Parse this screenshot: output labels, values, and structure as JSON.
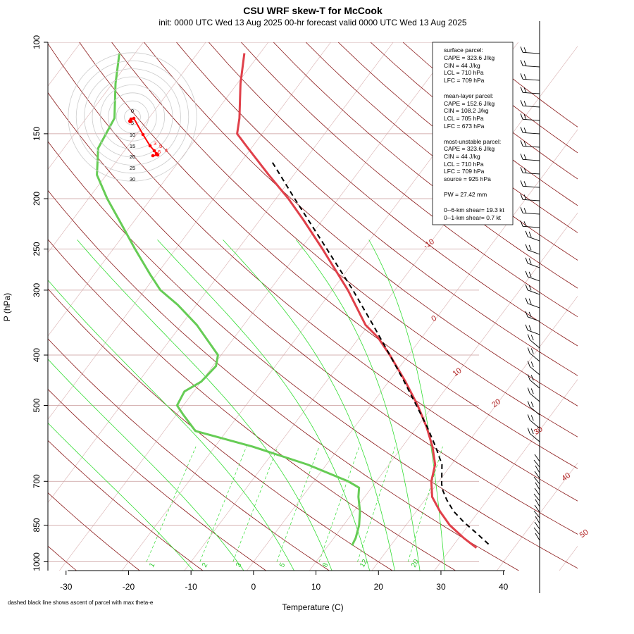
{
  "chart_data": {
    "type": "line",
    "title": "CSU WRF skew-T for McCook",
    "subtitle": "init: 0000 UTC Wed 13 Aug 2025    00-hr forecast valid 0000 UTC Wed 13 Aug 2025",
    "xlabel": "Temperature (C)",
    "ylabel": "P (hPa)",
    "xlim": [
      -33,
      52
    ],
    "ylim": [
      1000,
      100
    ],
    "y_scale": "log",
    "x_ticks": [
      "-30",
      "-20",
      "-10",
      "0",
      "10",
      "20",
      "30",
      "40"
    ],
    "y_ticks": [
      "100",
      "150",
      "200",
      "250",
      "300",
      "400",
      "500",
      "700",
      "850",
      "1000"
    ],
    "isotherm_labels": [
      "-10",
      "0",
      "10",
      "20",
      "30",
      "40",
      "50"
    ],
    "mixing_ratio_labels": [
      "1",
      "2",
      "3",
      "5",
      "8",
      "12",
      "20"
    ],
    "series": [
      {
        "name": "",
        "color": "#e0404a",
        "points": [
          {
            "p": 940,
            "t": 34.0
          },
          {
            "p": 900,
            "t": 30.8
          },
          {
            "p": 850,
            "t": 27.0
          },
          {
            "p": 800,
            "t": 23.8
          },
          {
            "p": 750,
            "t": 20.8
          },
          {
            "p": 700,
            "t": 18.8
          },
          {
            "p": 650,
            "t": 17.4
          },
          {
            "p": 600,
            "t": 14.8
          },
          {
            "p": 550,
            "t": 11.5
          },
          {
            "p": 500,
            "t": 7.5
          },
          {
            "p": 450,
            "t": 2.7
          },
          {
            "p": 400,
            "t": -3.0
          },
          {
            "p": 370,
            "t": -7.0
          },
          {
            "p": 350,
            "t": -10.5
          },
          {
            "p": 300,
            "t": -17.5
          },
          {
            "p": 250,
            "t": -26.5
          },
          {
            "p": 220,
            "t": -33.0
          },
          {
            "p": 200,
            "t": -38.0
          },
          {
            "p": 180,
            "t": -44.0
          },
          {
            "p": 160,
            "t": -50.5
          },
          {
            "p": 150,
            "t": -54.0
          },
          {
            "p": 140,
            "t": -55.5
          },
          {
            "p": 120,
            "t": -59.5
          },
          {
            "p": 105,
            "t": -62.5
          }
        ]
      },
      {
        "name": "",
        "color": "#66cc55",
        "points": [
          {
            "p": 930,
            "t": 13.8
          },
          {
            "p": 900,
            "t": 13.5
          },
          {
            "p": 850,
            "t": 12.5
          },
          {
            "p": 800,
            "t": 11.0
          },
          {
            "p": 750,
            "t": 9.0
          },
          {
            "p": 720,
            "t": 8.0
          },
          {
            "p": 700,
            "t": 5.5
          },
          {
            "p": 650,
            "t": -3.0
          },
          {
            "p": 600,
            "t": -14.0
          },
          {
            "p": 560,
            "t": -25.0
          },
          {
            "p": 520,
            "t": -29.0
          },
          {
            "p": 500,
            "t": -31.0
          },
          {
            "p": 470,
            "t": -31.5
          },
          {
            "p": 450,
            "t": -30.0
          },
          {
            "p": 420,
            "t": -29.5
          },
          {
            "p": 400,
            "t": -30.5
          },
          {
            "p": 350,
            "t": -37.5
          },
          {
            "p": 320,
            "t": -43.0
          },
          {
            "p": 300,
            "t": -47.5
          },
          {
            "p": 280,
            "t": -51.0
          },
          {
            "p": 250,
            "t": -56.5
          },
          {
            "p": 220,
            "t": -62.5
          },
          {
            "p": 200,
            "t": -67.0
          },
          {
            "p": 180,
            "t": -71.5
          },
          {
            "p": 160,
            "t": -74.5
          },
          {
            "p": 140,
            "t": -75.5
          },
          {
            "p": 120,
            "t": -79.5
          },
          {
            "p": 105,
            "t": -82.5
          }
        ]
      },
      {
        "name": "",
        "color": "#000000",
        "dashed": true,
        "points": [
          {
            "p": 925,
            "t": 35.5
          },
          {
            "p": 880,
            "t": 32.2
          },
          {
            "p": 840,
            "t": 29.0
          },
          {
            "p": 800,
            "t": 26.0
          },
          {
            "p": 760,
            "t": 23.5
          },
          {
            "p": 730,
            "t": 21.8
          },
          {
            "p": 709,
            "t": 20.8
          },
          {
            "p": 650,
            "t": 18.5
          },
          {
            "p": 600,
            "t": 15.3
          },
          {
            "p": 550,
            "t": 11.6
          },
          {
            "p": 500,
            "t": 7.3
          },
          {
            "p": 450,
            "t": 2.5
          },
          {
            "p": 400,
            "t": -3.0
          },
          {
            "p": 350,
            "t": -9.3
          },
          {
            "p": 300,
            "t": -16.7
          },
          {
            "p": 250,
            "t": -25.8
          },
          {
            "p": 200,
            "t": -37.0
          },
          {
            "p": 170,
            "t": -45.0
          }
        ]
      }
    ],
    "grid": true,
    "wind_barbs_side": "right"
  },
  "info_box": {
    "surface_header": "surface parcel:",
    "surface_cape": "CAPE = 323.6 J/kg",
    "surface_cin": "CIN = 44 J/kg",
    "surface_lcl": "LCL = 710 hPa",
    "surface_lfc": "LFC = 709 hPa",
    "mixed_header": "mean-layer parcel:",
    "mixed_cape": "CAPE = 152.6 J/kg",
    "mixed_cin": "CIN = 108.2 J/kg",
    "mixed_lcl": "LCL = 705 hPa",
    "mixed_lfc": "LFC = 673 hPa",
    "mu_header": "most-unstable parcel:",
    "mu_cape": "CAPE = 323.6 J/kg",
    "mu_cin": "CIN = 44 J/kg",
    "mu_lcl": "LCL = 710 hPa",
    "mu_lfc": "LFC = 709 hPa",
    "mu_source": "source = 925 hPa",
    "pw": "PW =  27.42 mm",
    "shear_06": "0--6-km shear= 19.3 kt",
    "shear_01": "0--1-km shear= 0.7 kt"
  },
  "hodograph": {
    "ring_labels": [
      "0",
      "5",
      "10",
      "15",
      "20",
      "25",
      "30"
    ],
    "point_labels": [
      "3",
      "5",
      "4",
      "6"
    ],
    "color": "#ff0000"
  },
  "footnote": "dashed black line shows ascent of parcel with max theta-e"
}
